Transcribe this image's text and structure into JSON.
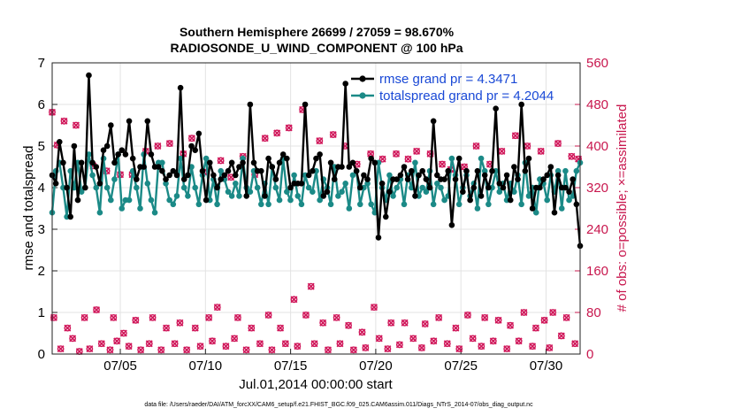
{
  "chart_data": {
    "type": "line",
    "title_line1": "Southern Hemisphere 26699 / 27059 = 98.670%",
    "title_line2": "RADIOSONDE_U_WIND_COMPONENT @ 100 hPa",
    "ylabel": "rmse and totalspread",
    "y2label": "# of obs: o=possible; ×=assimilated",
    "xlabel": "Jul.01,2014 00:00:00 start",
    "footer": "data file: /Users/raeder/DAI/ATM_forcXX/CAM6_setup/f.e21.FHIST_BGC.f09_025.CAM6assim.011/Diags_NTrS_2014-07/obs_diag_output.nc",
    "xlim": [
      1,
      32
    ],
    "ylim": [
      0,
      7
    ],
    "y2lim": [
      0,
      560
    ],
    "xticks": [
      5,
      10,
      15,
      20,
      25,
      30
    ],
    "xtick_labels": [
      "07/05",
      "07/10",
      "07/15",
      "07/20",
      "07/25",
      "07/30"
    ],
    "yticks": [
      0,
      1,
      2,
      3,
      4,
      5,
      6,
      7
    ],
    "ytick_labels": [
      "0",
      "1",
      "2",
      "3",
      "4",
      "5",
      "6",
      "7"
    ],
    "y2ticks": [
      0,
      80,
      160,
      240,
      320,
      400,
      480,
      560
    ],
    "y2tick_labels": [
      "0",
      "80",
      "160",
      "240",
      "320",
      "400",
      "480",
      "560"
    ],
    "colors": {
      "rmse": "#000000",
      "spread": "#1b8a87",
      "obs": "#d0175a",
      "legend_text": "#1a49d6"
    },
    "series": [
      {
        "name": "rmse grand pr = 4.3471",
        "color": "#000000",
        "values": [
          4.3,
          4.1,
          5.1,
          4.6,
          4.0,
          3.3,
          5.0,
          3.7,
          4.6,
          4.0,
          6.7,
          4.6,
          4.5,
          4.1,
          4.9,
          5.0,
          5.5,
          4.6,
          4.8,
          4.9,
          4.8,
          5.6,
          4.7,
          4.2,
          4.5,
          4.5,
          5.6,
          4.8,
          4.5,
          4.5,
          4.4,
          4.2,
          4.3,
          4.4,
          4.3,
          6.4,
          4.2,
          4.3,
          5.0,
          4.9,
          5.3,
          4.4,
          3.7,
          4.6,
          4.3,
          4.0,
          4.2,
          4.3,
          4.4,
          4.6,
          4.3,
          4.5,
          4.6,
          3.8,
          6.0,
          4.6,
          4.4,
          4.4,
          3.8,
          4.7,
          4.5,
          4.2,
          4.6,
          4.8,
          4.7,
          4.0,
          4.1,
          4.1,
          4.1,
          6.0,
          4.3,
          4.4,
          4.7,
          4.8,
          3.8,
          3.9,
          4.6,
          4.2,
          4.5,
          4.5,
          6.5,
          4.5,
          4.6,
          4.4,
          4.0,
          4.3,
          4.2,
          4.7,
          4.6,
          2.8,
          4.1,
          3.3,
          3.9,
          4.2,
          4.2,
          4.3,
          4.5,
          4.2,
          4.4,
          3.8,
          4.3,
          4.4,
          4.2,
          4.0,
          5.6,
          4.3,
          4.2,
          4.2,
          4.4,
          3.1,
          4.2,
          4.7,
          3.9,
          4.4,
          3.7,
          4.0,
          4.4,
          3.8,
          4.3,
          4.0,
          4.4,
          5.9,
          4.1,
          4.0,
          4.3,
          3.7,
          4.5,
          4.2,
          6.0,
          4.4,
          4.7,
          3.5,
          4.0,
          4.0,
          4.2,
          4.3,
          4.5,
          3.4,
          4.3,
          4.0,
          4.0,
          3.9,
          4.2,
          3.6,
          2.6
        ]
      },
      {
        "name": "totalspread grand pr = 4.2044",
        "color": "#1b8a87",
        "values": [
          3.4,
          4.4,
          4.6,
          4.0,
          3.3,
          4.4,
          4.0,
          4.6,
          3.9,
          4.0,
          4.8,
          4.3,
          4.0,
          3.4,
          4.7,
          4.0,
          3.7,
          4.2,
          4.8,
          3.5,
          3.7,
          3.7,
          4.4,
          4.0,
          3.5,
          4.8,
          4.1,
          3.7,
          3.4,
          4.6,
          4.6,
          4.1,
          3.7,
          3.6,
          3.8,
          4.7,
          4.0,
          3.8,
          4.5,
          4.0,
          3.6,
          4.3,
          4.7,
          3.7,
          4.2,
          3.6,
          4.4,
          4.2,
          3.9,
          3.8,
          4.1,
          3.8,
          4.7,
          4.0,
          3.9,
          4.4,
          4.0,
          3.6,
          4.1,
          3.6,
          4.5,
          4.0,
          3.7,
          4.7,
          3.9,
          3.7,
          4.3,
          3.8,
          3.6,
          4.3,
          4.0,
          3.9,
          4.4,
          3.7,
          4.2,
          4.0,
          3.6,
          4.5,
          3.8,
          3.9,
          4.1,
          3.5,
          4.3,
          4.4,
          3.6,
          4.0,
          4.1,
          3.6,
          3.4,
          4.6,
          4.0,
          3.7,
          4.3,
          3.8,
          4.0,
          4.2,
          3.6,
          4.3,
          4.0,
          4.6,
          3.8,
          4.0,
          3.9,
          4.4,
          3.6,
          4.1,
          4.0,
          3.7,
          3.8,
          4.7,
          4.3,
          3.6,
          4.0,
          4.3,
          3.8,
          4.1,
          3.5,
          4.7,
          4.4,
          3.6,
          4.0,
          4.4,
          3.9,
          4.1,
          3.7,
          4.1,
          3.9,
          4.3,
          3.6,
          4.6,
          3.8,
          4.0,
          3.4,
          4.2,
          4.1,
          3.7,
          4.3,
          3.9,
          4.4,
          3.5,
          4.4,
          3.7,
          3.8,
          4.4,
          4.6
        ]
      }
    ],
    "obs_possible": [
      [
        1.0,
        465
      ],
      [
        1.1,
        70
      ],
      [
        1.3,
        402
      ],
      [
        1.5,
        10
      ],
      [
        1.7,
        448
      ],
      [
        1.9,
        50
      ],
      [
        2.2,
        30
      ],
      [
        2.4,
        440
      ],
      [
        2.6,
        5
      ],
      [
        2.9,
        70
      ],
      [
        3.2,
        10
      ],
      [
        3.4,
        362
      ],
      [
        3.6,
        85
      ],
      [
        3.9,
        20
      ],
      [
        4.2,
        352
      ],
      [
        4.4,
        8
      ],
      [
        4.6,
        70
      ],
      [
        4.8,
        25
      ],
      [
        5.0,
        345
      ],
      [
        5.2,
        40
      ],
      [
        5.5,
        15
      ],
      [
        5.7,
        345
      ],
      [
        5.9,
        65
      ],
      [
        6.2,
        8
      ],
      [
        6.5,
        390
      ],
      [
        6.7,
        20
      ],
      [
        6.9,
        70
      ],
      [
        7.2,
        400
      ],
      [
        7.4,
        8
      ],
      [
        7.7,
        50
      ],
      [
        7.9,
        405
      ],
      [
        8.2,
        20
      ],
      [
        8.5,
        60
      ],
      [
        8.7,
        385
      ],
      [
        8.9,
        8
      ],
      [
        9.2,
        415
      ],
      [
        9.4,
        50
      ],
      [
        9.7,
        15
      ],
      [
        9.9,
        350
      ],
      [
        10.2,
        70
      ],
      [
        10.4,
        25
      ],
      [
        10.7,
        90
      ],
      [
        10.9,
        372
      ],
      [
        11.2,
        15
      ],
      [
        11.5,
        340
      ],
      [
        11.7,
        30
      ],
      [
        11.9,
        70
      ],
      [
        12.2,
        380
      ],
      [
        12.4,
        8
      ],
      [
        12.7,
        50
      ],
      [
        12.9,
        345
      ],
      [
        13.2,
        20
      ],
      [
        13.5,
        415
      ],
      [
        13.7,
        75
      ],
      [
        13.9,
        8
      ],
      [
        14.2,
        425
      ],
      [
        14.4,
        50
      ],
      [
        14.7,
        20
      ],
      [
        14.9,
        435
      ],
      [
        15.2,
        105
      ],
      [
        15.4,
        15
      ],
      [
        15.7,
        470
      ],
      [
        15.9,
        75
      ],
      [
        16.2,
        130
      ],
      [
        16.4,
        20
      ],
      [
        16.7,
        410
      ],
      [
        16.9,
        60
      ],
      [
        17.2,
        8
      ],
      [
        17.5,
        422
      ],
      [
        17.7,
        70
      ],
      [
        17.9,
        20
      ],
      [
        18.2,
        400
      ],
      [
        18.4,
        55
      ],
      [
        18.7,
        8
      ],
      [
        18.9,
        365
      ],
      [
        19.2,
        42
      ],
      [
        19.4,
        12
      ],
      [
        19.7,
        385
      ],
      [
        19.9,
        90
      ],
      [
        20.2,
        30
      ],
      [
        20.4,
        375
      ],
      [
        20.7,
        10
      ],
      [
        20.9,
        60
      ],
      [
        21.2,
        385
      ],
      [
        21.4,
        18
      ],
      [
        21.7,
        60
      ],
      [
        21.9,
        375
      ],
      [
        22.2,
        30
      ],
      [
        22.4,
        390
      ],
      [
        22.7,
        12
      ],
      [
        22.9,
        58
      ],
      [
        23.2,
        385
      ],
      [
        23.4,
        25
      ],
      [
        23.7,
        70
      ],
      [
        23.9,
        365
      ],
      [
        24.2,
        20
      ],
      [
        24.4,
        355
      ],
      [
        24.7,
        50
      ],
      [
        24.9,
        10
      ],
      [
        25.2,
        360
      ],
      [
        25.4,
        75
      ],
      [
        25.7,
        30
      ],
      [
        25.9,
        400
      ],
      [
        26.2,
        15
      ],
      [
        26.4,
        70
      ],
      [
        26.7,
        365
      ],
      [
        26.9,
        25
      ],
      [
        27.2,
        65
      ],
      [
        27.4,
        390
      ],
      [
        27.7,
        10
      ],
      [
        27.9,
        55
      ],
      [
        28.2,
        420
      ],
      [
        28.4,
        25
      ],
      [
        28.7,
        80
      ],
      [
        28.9,
        400
      ],
      [
        29.2,
        15
      ],
      [
        29.4,
        50
      ],
      [
        29.7,
        390
      ],
      [
        29.9,
        65
      ],
      [
        30.2,
        12
      ],
      [
        30.4,
        80
      ],
      [
        30.7,
        405
      ],
      [
        30.9,
        35
      ],
      [
        31.2,
        70
      ],
      [
        31.5,
        380
      ],
      [
        31.7,
        20
      ],
      [
        31.9,
        375
      ]
    ]
  }
}
